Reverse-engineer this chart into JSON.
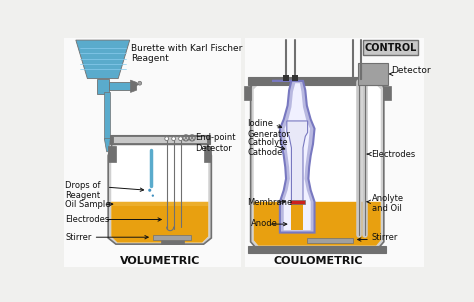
{
  "bg_color": "#f0f0ee",
  "title_vol": "VOLUMETRIC",
  "title_coul": "COULOMETRIC",
  "label_burette": "Burette with Karl Fischer\nReagent",
  "label_endpoint": "End-point\nDetector",
  "label_drops": "Drops of\nReagent",
  "label_oil": "Oil Sample",
  "label_electrodes_vol": "Electrodes",
  "label_stirrer_vol": "Stirrer",
  "label_iodine": "Iodine\nGenerator",
  "label_catholyte": "Catholyte\nCathode",
  "label_membrane": "Membrane",
  "label_anode": "Anode",
  "label_electrodes_coul": "Electrodes",
  "label_anolyte": "Anolyte\nand Oil",
  "label_stirrer_coul": "Stirrer",
  "label_control": "CONTROL",
  "label_detector": "Detector",
  "col_blue_burette": "#5AABCC",
  "col_blue_light": "#88CCEE",
  "col_gold": "#E8A010",
  "col_gold_light": "#F0B840",
  "col_gray_dark": "#707070",
  "col_gray_light": "#C8C8C8",
  "col_gray_med": "#A0A0A0",
  "col_gray_vessel": "#D0D0D0",
  "col_white": "#FFFFFF",
  "col_purple": "#7878C0",
  "col_purple_light": "#B8B8E0",
  "col_red": "#CC2020",
  "col_black": "#222222",
  "col_text": "#111111",
  "col_blue_drop": "#4090C0",
  "col_bg_white": "#FAFAFA"
}
